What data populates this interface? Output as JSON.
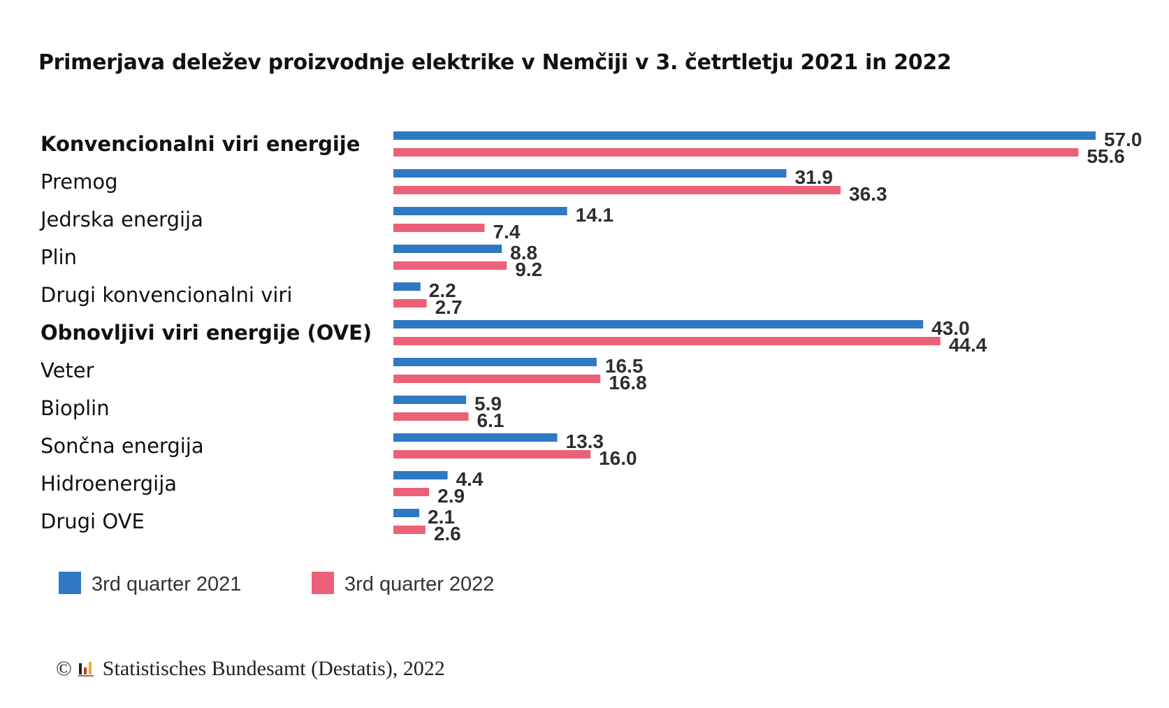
{
  "chart_data": {
    "type": "bar",
    "orientation": "horizontal",
    "title": "Primerjava deležev proizvodnje elektrike v Nemčiji v 3. četrtletju 2021 in 2022",
    "categories": [
      "Konvencionalni viri energije",
      "Premog",
      "Jedrska energija",
      "Plin",
      "Drugi konvencionalni viri",
      "Obnovljivi viri energije (OVE)",
      "Veter",
      "Bioplin",
      "Sončna energija",
      "Hidroenergija",
      "Drugi OVE"
    ],
    "bold_categories": [
      "Konvencionalni viri energije",
      "Obnovljivi viri energije (OVE)"
    ],
    "series": [
      {
        "name": "3rd quarter 2021",
        "color": "#2f78c4",
        "values": [
          57.0,
          31.9,
          14.1,
          8.8,
          2.2,
          43.0,
          16.5,
          5.9,
          13.3,
          4.4,
          2.1
        ],
        "labels": [
          "57.0",
          "31.9",
          "14.1",
          "8.8",
          "2.2",
          "43.0",
          "16.5",
          "5.9",
          "13.3",
          "4.4",
          "2.1"
        ]
      },
      {
        "name": "3rd quarter 2022",
        "color": "#ec6178",
        "values": [
          55.6,
          36.3,
          7.4,
          9.2,
          2.7,
          44.4,
          16.8,
          6.1,
          16.0,
          2.9,
          2.6
        ],
        "labels": [
          "55.6",
          "36.3",
          "7.4",
          "9.2",
          "2.7",
          "44.4",
          "16.8",
          "6.1",
          "16.0",
          "2.9",
          "2.6"
        ]
      }
    ],
    "xlim": [
      0,
      57.0
    ],
    "grid": false,
    "legend_position": "bottom-left"
  },
  "source": {
    "copyright": "©",
    "text": "Statistisches Bundesamt (Destatis), 2022"
  }
}
